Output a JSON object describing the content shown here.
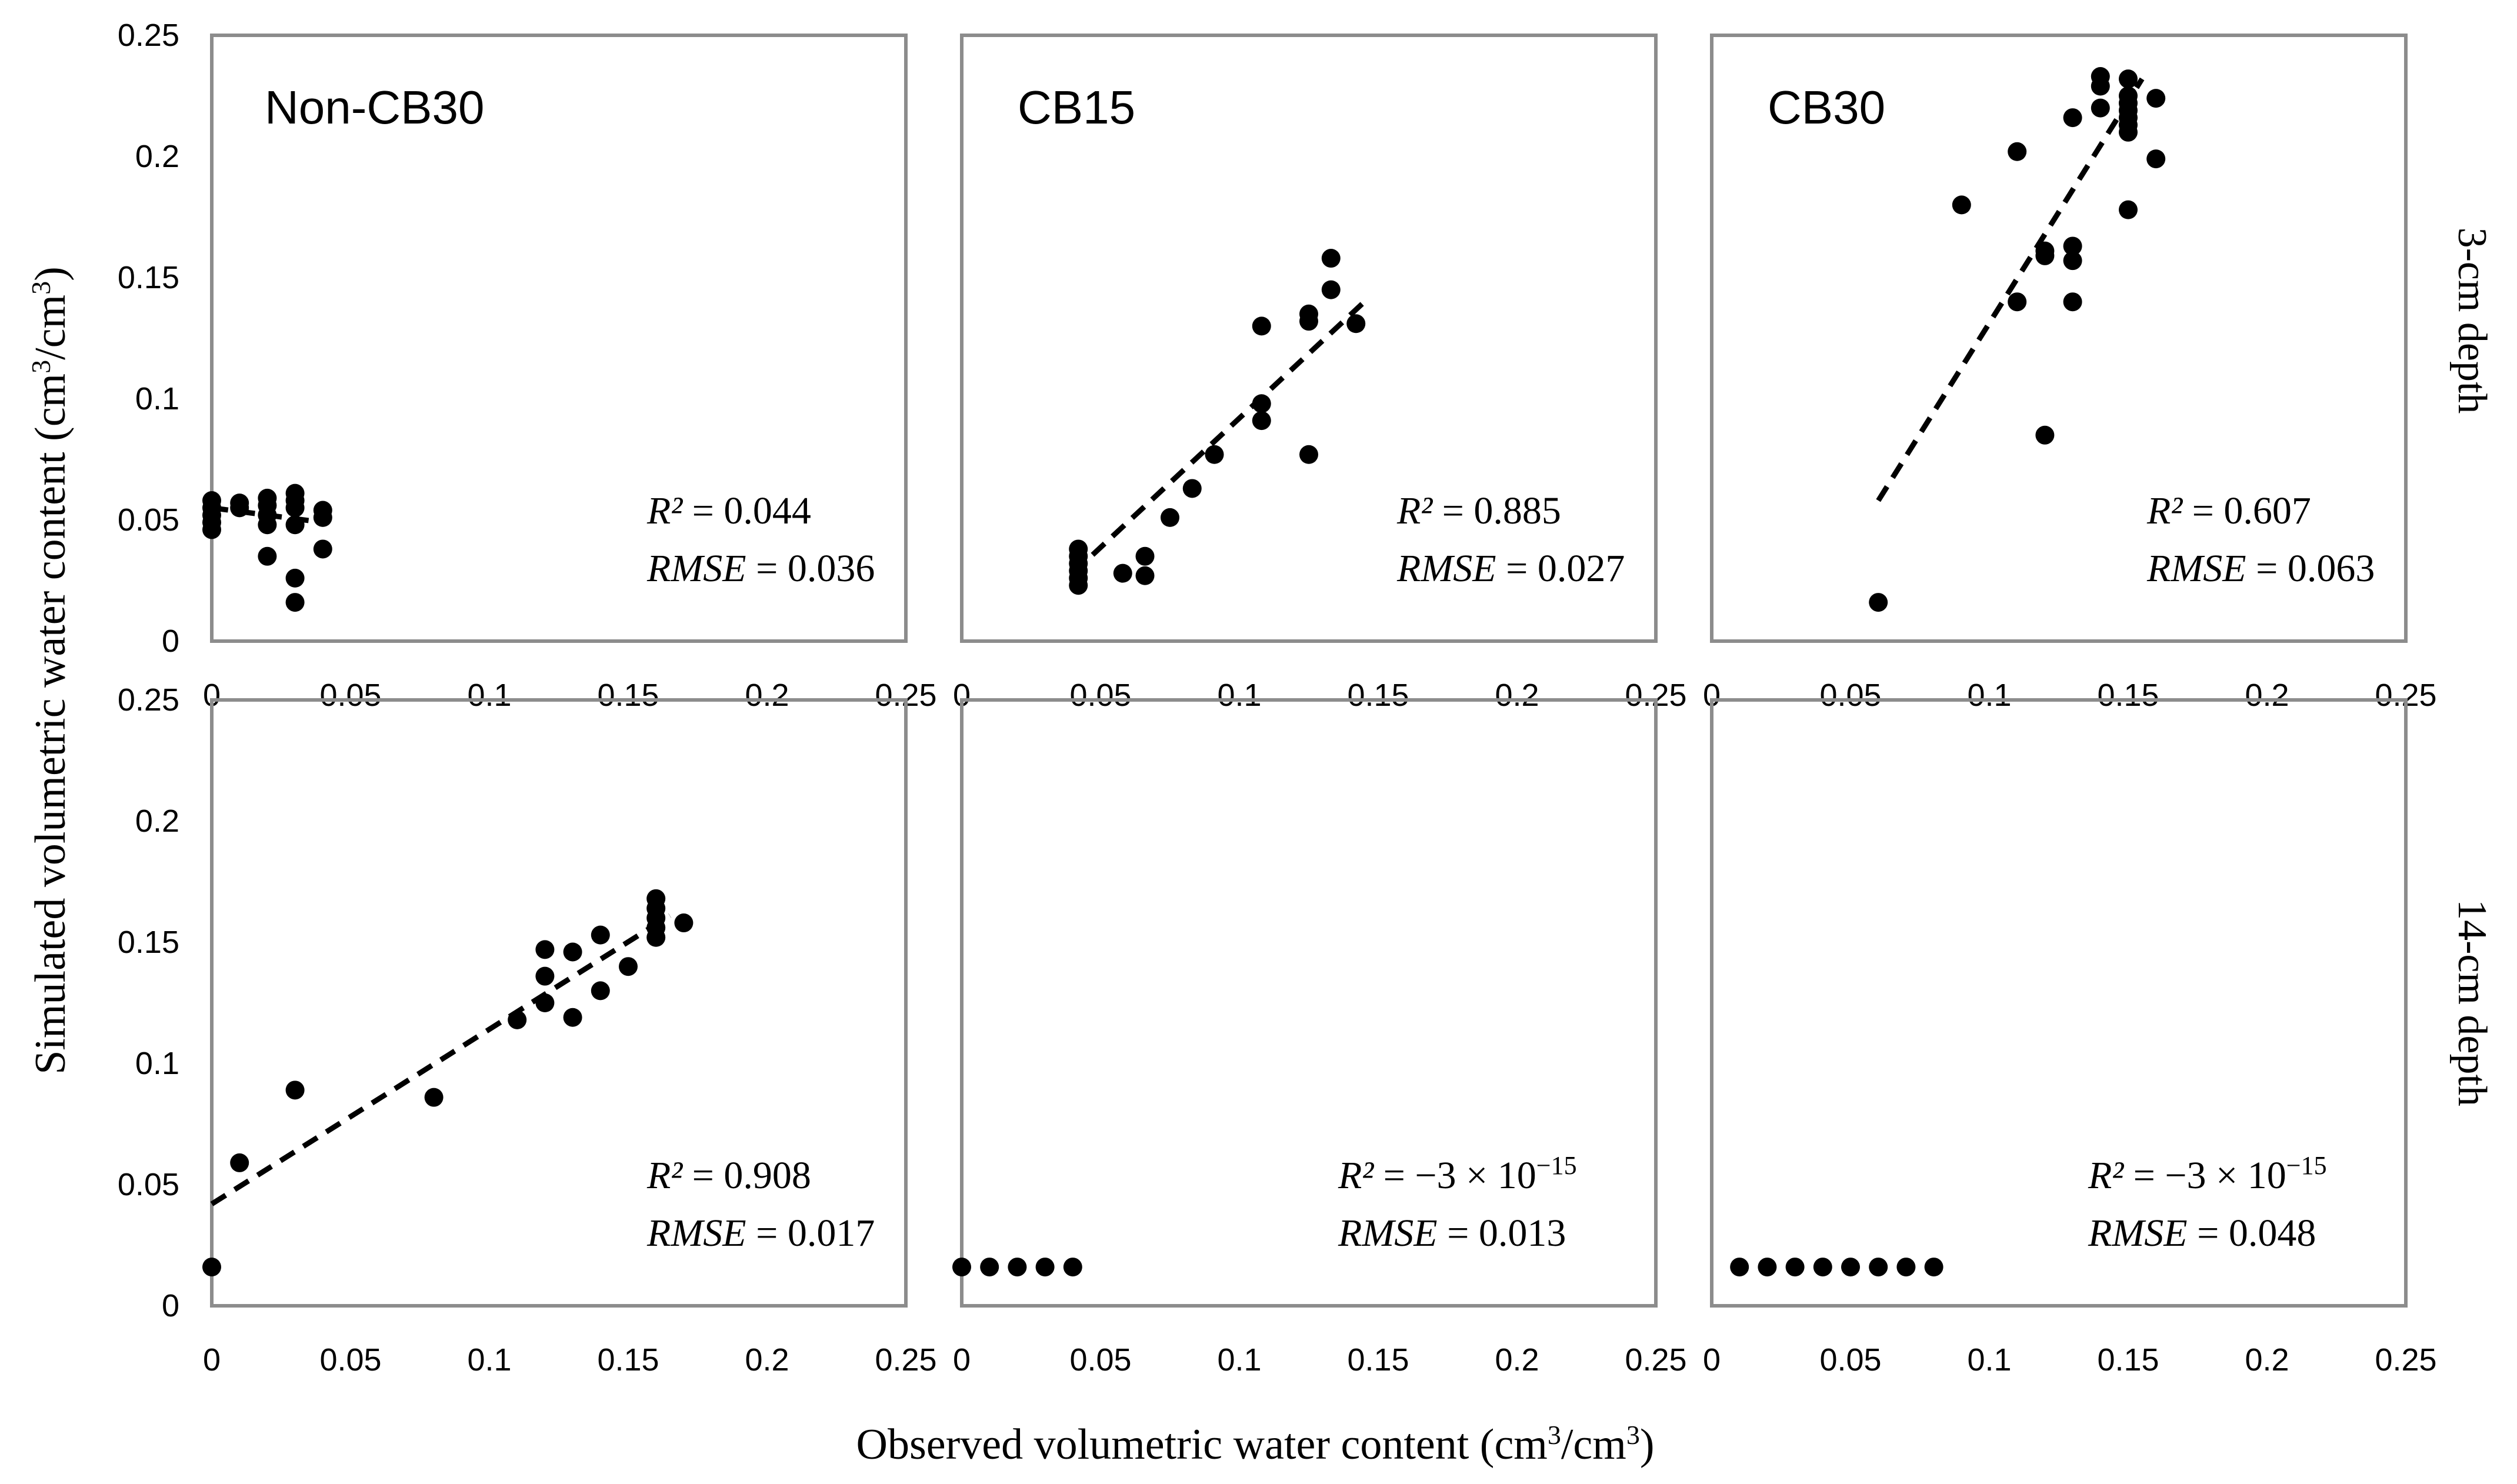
{
  "chart_data": {
    "type": "scatter",
    "layout": "2x3 small multiples",
    "xlabel": "Observed volumetric water content (cm",
    "xlabel_units": {
      "sup": "3",
      "mid": "/cm",
      "end": ")"
    },
    "ylabel": "Simulated volumetric water content (cm",
    "ylabel_units": {
      "sup": "3",
      "mid": "/cm",
      "end": ")"
    },
    "xlim": [
      0,
      0.25
    ],
    "ylim": [
      0,
      0.25
    ],
    "x_ticks": [
      "0",
      "0.05",
      "0.1",
      "0.15",
      "0.2",
      "0.25"
    ],
    "y_ticks": [
      "0",
      "0.05",
      "0.1",
      "0.15",
      "0.2",
      "0.25"
    ],
    "row_labels": [
      "3-cm depth",
      "14-cm depth"
    ],
    "r2_label": "R²",
    "rmse_label": "RMSE",
    "panels": [
      {
        "row": 0,
        "col": 0,
        "title": "Non-CB30",
        "r2": "0.044",
        "rmse": "0.036",
        "fit": {
          "x0": 0.0,
          "y0": 0.055,
          "x1": 0.04,
          "y1": 0.049
        },
        "points": [
          [
            0,
            0.058
          ],
          [
            0,
            0.055
          ],
          [
            0,
            0.052
          ],
          [
            0,
            0.049
          ],
          [
            0,
            0.046
          ],
          [
            0.01,
            0.057
          ],
          [
            0.01,
            0.055
          ],
          [
            0.02,
            0.059
          ],
          [
            0.02,
            0.056
          ],
          [
            0.02,
            0.052
          ],
          [
            0.02,
            0.048
          ],
          [
            0.02,
            0.035
          ],
          [
            0.03,
            0.061
          ],
          [
            0.03,
            0.058
          ],
          [
            0.03,
            0.055
          ],
          [
            0.03,
            0.048
          ],
          [
            0.03,
            0.026
          ],
          [
            0.03,
            0.016
          ],
          [
            0.04,
            0.054
          ],
          [
            0.04,
            0.051
          ],
          [
            0.04,
            0.038
          ]
        ]
      },
      {
        "row": 0,
        "col": 1,
        "title": "CB15",
        "r2": "0.885",
        "rmse": "0.027",
        "fit": {
          "x0": 0.04,
          "y0": 0.028,
          "x1": 0.145,
          "y1": 0.14
        },
        "points": [
          [
            0.042,
            0.038
          ],
          [
            0.042,
            0.035
          ],
          [
            0.042,
            0.032
          ],
          [
            0.042,
            0.029
          ],
          [
            0.042,
            0.026
          ],
          [
            0.042,
            0.023
          ],
          [
            0.058,
            0.028
          ],
          [
            0.066,
            0.035
          ],
          [
            0.066,
            0.027
          ],
          [
            0.075,
            0.051
          ],
          [
            0.083,
            0.063
          ],
          [
            0.091,
            0.077
          ],
          [
            0.108,
            0.13
          ],
          [
            0.108,
            0.098
          ],
          [
            0.108,
            0.091
          ],
          [
            0.125,
            0.135
          ],
          [
            0.125,
            0.132
          ],
          [
            0.125,
            0.077
          ],
          [
            0.133,
            0.158
          ],
          [
            0.133,
            0.145
          ],
          [
            0.142,
            0.131
          ]
        ]
      },
      {
        "row": 0,
        "col": 2,
        "title": "CB30",
        "r2": "0.607",
        "rmse": "0.063",
        "fit": {
          "x0": 0.06,
          "y0": 0.058,
          "x1": 0.155,
          "y1": 0.232
        },
        "points": [
          [
            0.06,
            0.016
          ],
          [
            0.09,
            0.18
          ],
          [
            0.11,
            0.202
          ],
          [
            0.11,
            0.14
          ],
          [
            0.12,
            0.161
          ],
          [
            0.12,
            0.159
          ],
          [
            0.12,
            0.085
          ],
          [
            0.13,
            0.216
          ],
          [
            0.13,
            0.163
          ],
          [
            0.13,
            0.157
          ],
          [
            0.13,
            0.14
          ],
          [
            0.14,
            0.233
          ],
          [
            0.14,
            0.229
          ],
          [
            0.14,
            0.22
          ],
          [
            0.15,
            0.232
          ],
          [
            0.15,
            0.225
          ],
          [
            0.15,
            0.222
          ],
          [
            0.15,
            0.219
          ],
          [
            0.15,
            0.216
          ],
          [
            0.15,
            0.213
          ],
          [
            0.15,
            0.21
          ],
          [
            0.15,
            0.178
          ],
          [
            0.16,
            0.224
          ],
          [
            0.16,
            0.199
          ]
        ]
      },
      {
        "row": 1,
        "col": 0,
        "title": "",
        "r2": "0.908",
        "rmse": "0.017",
        "fit": {
          "x0": 0.0,
          "y0": 0.042,
          "x1": 0.165,
          "y1": 0.161
        },
        "points": [
          [
            0,
            0.016
          ],
          [
            0.01,
            0.059
          ],
          [
            0.03,
            0.089
          ],
          [
            0.08,
            0.086
          ],
          [
            0.11,
            0.118
          ],
          [
            0.12,
            0.147
          ],
          [
            0.12,
            0.136
          ],
          [
            0.12,
            0.125
          ],
          [
            0.13,
            0.146
          ],
          [
            0.13,
            0.119
          ],
          [
            0.14,
            0.153
          ],
          [
            0.14,
            0.13
          ],
          [
            0.15,
            0.14
          ],
          [
            0.16,
            0.168
          ],
          [
            0.16,
            0.164
          ],
          [
            0.16,
            0.16
          ],
          [
            0.16,
            0.156
          ],
          [
            0.16,
            0.152
          ],
          [
            0.17,
            0.158
          ]
        ]
      },
      {
        "row": 1,
        "col": 1,
        "title": "",
        "r2": "−3 × 10",
        "r2_exp": "−15",
        "rmse": "0.013",
        "fit": null,
        "points": [
          [
            0,
            0.016
          ],
          [
            0.01,
            0.016
          ],
          [
            0.02,
            0.016
          ],
          [
            0.03,
            0.016
          ],
          [
            0.04,
            0.016
          ]
        ]
      },
      {
        "row": 1,
        "col": 2,
        "title": "",
        "r2": "−3 × 10",
        "r2_exp": "−15",
        "rmse": "0.048",
        "fit": null,
        "points": [
          [
            0.01,
            0.016
          ],
          [
            0.02,
            0.016
          ],
          [
            0.03,
            0.016
          ],
          [
            0.04,
            0.016
          ],
          [
            0.05,
            0.016
          ],
          [
            0.06,
            0.016
          ],
          [
            0.07,
            0.016
          ],
          [
            0.08,
            0.016
          ]
        ]
      }
    ]
  }
}
